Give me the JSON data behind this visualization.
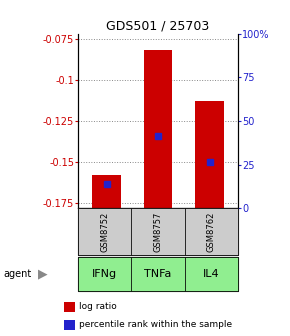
{
  "title": "GDS501 / 25703",
  "samples": [
    "GSM8752",
    "GSM8757",
    "GSM8762"
  ],
  "agents": [
    "IFNg",
    "TNFa",
    "IL4"
  ],
  "log_ratios": [
    -0.158,
    -0.082,
    -0.113
  ],
  "percentile_values": [
    -0.163,
    -0.134,
    -0.15
  ],
  "percentile_ranks": [
    10,
    43,
    25
  ],
  "ylim": [
    -0.178,
    -0.072
  ],
  "yticks_left": [
    -0.175,
    -0.15,
    -0.125,
    -0.1,
    -0.075
  ],
  "ytick_labels_left": [
    "-0.175",
    "-0.15",
    "-0.125",
    "-0.1",
    "-0.075"
  ],
  "yticks_right_pct": [
    0,
    25,
    50,
    75,
    100
  ],
  "bar_color": "#cc0000",
  "blue_color": "#2222cc",
  "sample_box_color": "#cccccc",
  "agent_box_color": "#90ee90",
  "legend_red_label": "log ratio",
  "legend_blue_label": "percentile rank within the sample",
  "left_axis_color": "#cc0000",
  "right_axis_color": "#2222cc",
  "bar_width": 0.55,
  "title_fontsize": 9,
  "axis_fontsize": 7,
  "label_fontsize": 7,
  "sample_fontsize": 6,
  "agent_fontsize": 8
}
